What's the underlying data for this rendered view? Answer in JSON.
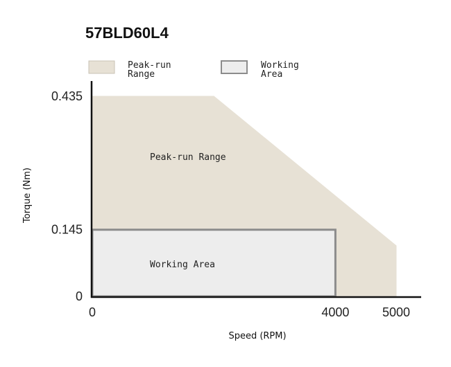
{
  "chart_data": {
    "type": "area",
    "title": "57BLD60L4",
    "xlabel": "Speed (RPM)",
    "ylabel": "Torque (Nm)",
    "xlim": [
      0,
      5000
    ],
    "ylim": [
      0,
      0.435
    ],
    "x_ticks": [
      "0",
      "4000",
      "5000"
    ],
    "y_ticks": [
      "0",
      "0.145",
      "0.435"
    ],
    "grid": false,
    "legend_position": "top-left",
    "series": [
      {
        "name": "Peak-run Range",
        "legend_lines": [
          "Peak-run",
          "Range"
        ],
        "region_label": "Peak-run Range",
        "color": "#e7e1d5",
        "outline": "#e7e1d5",
        "points": [
          [
            0,
            0
          ],
          [
            0,
            0.435
          ],
          [
            2000,
            0.435
          ],
          [
            5000,
            0.11
          ],
          [
            5000,
            0
          ]
        ]
      },
      {
        "name": "Working Area",
        "legend_lines": [
          "Working",
          "Area"
        ],
        "region_label": "Working Area",
        "color": "#ededed",
        "outline": "#8c8c8c",
        "points": [
          [
            0,
            0
          ],
          [
            0,
            0.145
          ],
          [
            4000,
            0.145
          ],
          [
            4000,
            0
          ]
        ]
      }
    ]
  }
}
